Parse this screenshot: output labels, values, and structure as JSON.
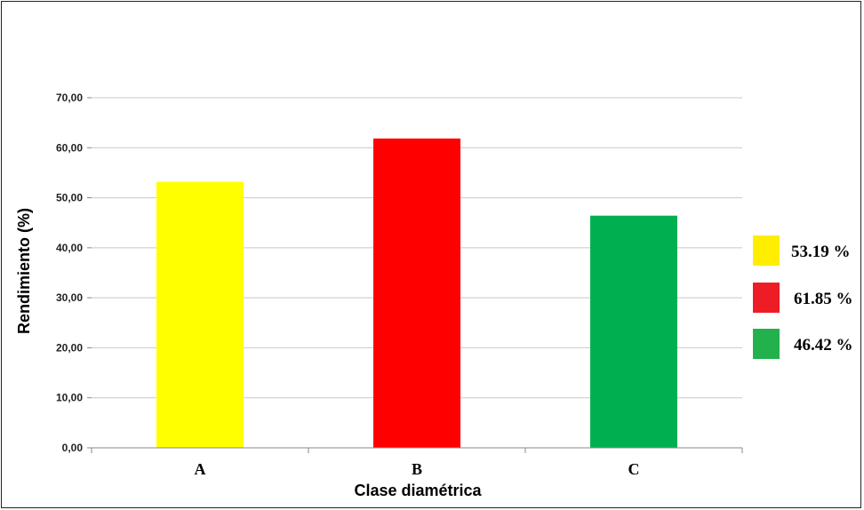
{
  "chart_data": {
    "type": "bar",
    "categories": [
      "A",
      "B",
      "C"
    ],
    "values": [
      53.19,
      61.85,
      46.42
    ],
    "colors": [
      "#ffff00",
      "#ff0000",
      "#00b050"
    ],
    "ylabel": "Rendimiento (%)",
    "xlabel": "Clase diamétrica",
    "ylim": [
      0,
      70
    ],
    "yticks": [
      "0,00",
      "10,00",
      "20,00",
      "30,00",
      "40,00",
      "50,00",
      "60,00",
      "70,00"
    ],
    "grid": true,
    "legend": {
      "placement": "right",
      "entries": [
        {
          "label": "53.19 %",
          "color": "#ffee00"
        },
        {
          "label": "61.85 %",
          "color": "#ee1c25"
        },
        {
          "label": "46.42 %",
          "color": "#22b14c"
        }
      ]
    }
  }
}
